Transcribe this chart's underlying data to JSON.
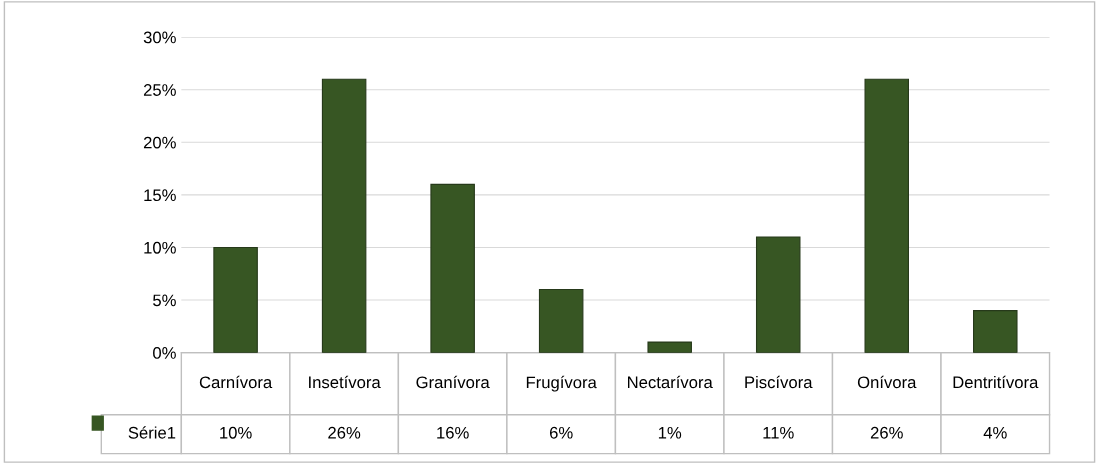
{
  "chart_data": {
    "type": "bar",
    "categories": [
      "Carnívora",
      "Insetívora",
      "Granívora",
      "Frugívora",
      "Nectarívora",
      "Piscívora",
      "Onívora",
      "Dentritívora"
    ],
    "series": [
      {
        "name": "Série1",
        "color": "#375623",
        "values": [
          10,
          26,
          16,
          6,
          1,
          11,
          26,
          4
        ],
        "value_labels": [
          "10%",
          "26%",
          "16%",
          "6%",
          "1%",
          "11%",
          "26%",
          "4%"
        ]
      }
    ],
    "ylim": [
      0,
      30
    ],
    "yticks": [
      {
        "value": 0,
        "label": "0%"
      },
      {
        "value": 5,
        "label": "5%"
      },
      {
        "value": 10,
        "label": "10%"
      },
      {
        "value": 15,
        "label": "15%"
      },
      {
        "value": 20,
        "label": "20%"
      },
      {
        "value": 25,
        "label": "25%"
      },
      {
        "value": 30,
        "label": "30%"
      }
    ],
    "grid": "y",
    "legend": "bottom left"
  }
}
